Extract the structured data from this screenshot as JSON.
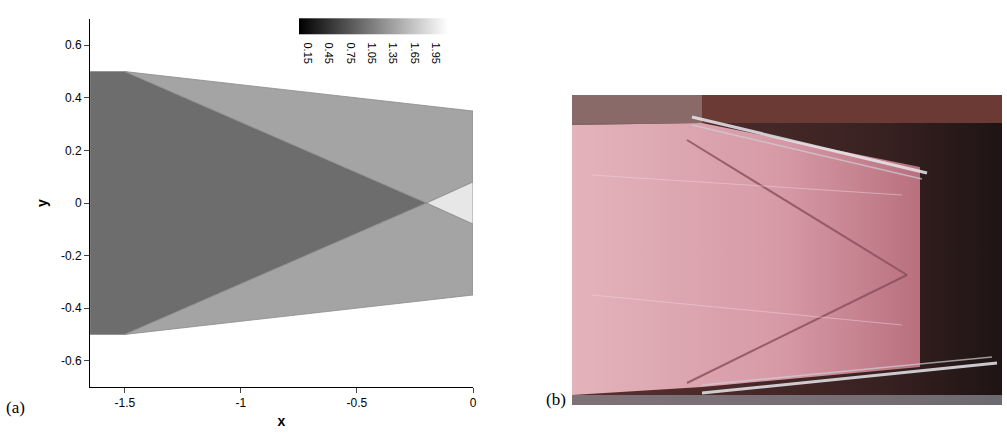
{
  "chart_data": {
    "type": "contour_regions",
    "panel_label": "(a)",
    "x_label": "x",
    "y_label": "y",
    "xlim": [
      -1.65,
      0
    ],
    "xticks": [
      -1.5,
      -1,
      -0.5,
      0
    ],
    "ylim": [
      -0.7,
      0.7
    ],
    "yticks": [
      0.6,
      0.4,
      0.2,
      0,
      -0.2,
      -0.4,
      -0.6
    ],
    "colorbar": {
      "range": [
        0,
        2.1
      ],
      "ticks": [
        0.15,
        0.45,
        0.75,
        1.05,
        1.35,
        1.65,
        1.95
      ]
    },
    "regions": [
      {
        "x": [
          -1.65,
          -1.5,
          -0.2,
          -1.5,
          -1.65
        ],
        "y": [
          0.5,
          0.5,
          0,
          -0.5,
          -0.5
        ],
        "value": 0.9
      },
      {
        "x": [
          -1.5,
          0,
          0,
          -0.2
        ],
        "y": [
          0.5,
          0.35,
          0.08,
          0
        ],
        "value": 1.35
      },
      {
        "x": [
          -1.5,
          0,
          0,
          -0.2
        ],
        "y": [
          -0.5,
          -0.35,
          -0.08,
          0
        ],
        "value": 1.35
      },
      {
        "x": [
          -0.2,
          0,
          0
        ],
        "y": [
          0,
          0.08,
          -0.08
        ],
        "value": 1.9
      }
    ]
  },
  "photo": {
    "panel_label": "(b)"
  }
}
